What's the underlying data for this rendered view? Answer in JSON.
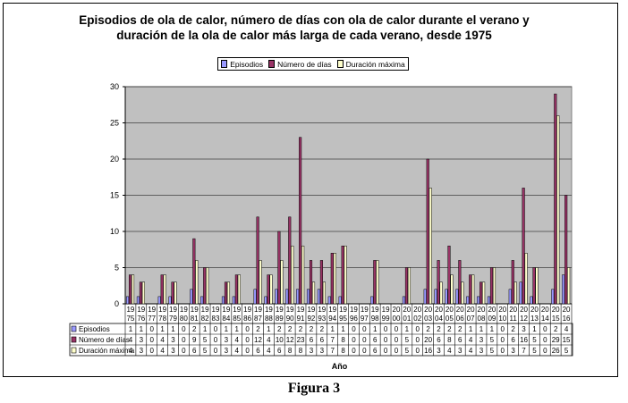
{
  "caption": "Figura 3",
  "chart_data": {
    "type": "bar",
    "title_lines": [
      "Episodios de ola de calor, número de días con ola de calor durante el verano y",
      "duración de la ola de calor más larga de cada verano, desde 1975"
    ],
    "xlabel": "Año",
    "ylabel": "",
    "ylim": [
      0,
      30
    ],
    "yticks": [
      0,
      5,
      10,
      15,
      20,
      25,
      30
    ],
    "grid": true,
    "legend_position": "top-center",
    "categories": [
      "1975",
      "1976",
      "1977",
      "1978",
      "1979",
      "1980",
      "1981",
      "1982",
      "1983",
      "1984",
      "1985",
      "1986",
      "1987",
      "1988",
      "1989",
      "1990",
      "1991",
      "1992",
      "1993",
      "1994",
      "1995",
      "1996",
      "1997",
      "1998",
      "1999",
      "2000",
      "2001",
      "2002",
      "2003",
      "2004",
      "2005",
      "2006",
      "2007",
      "2008",
      "2009",
      "2010",
      "2011",
      "2012",
      "2013",
      "2014",
      "2015",
      "2016"
    ],
    "series": [
      {
        "name": "Episodios",
        "color": "#9999ff",
        "values": [
          1,
          1,
          0,
          1,
          1,
          0,
          2,
          1,
          0,
          1,
          1,
          0,
          2,
          1,
          2,
          2,
          2,
          2,
          2,
          1,
          1,
          0,
          0,
          1,
          0,
          0,
          1,
          0,
          2,
          2,
          2,
          2,
          1,
          1,
          1,
          0,
          2,
          3,
          1,
          0,
          2,
          4
        ]
      },
      {
        "name": "Número de días",
        "color": "#993366",
        "values": [
          4,
          3,
          0,
          4,
          3,
          0,
          9,
          5,
          0,
          3,
          4,
          0,
          12,
          4,
          10,
          12,
          23,
          6,
          6,
          7,
          8,
          0,
          0,
          6,
          0,
          0,
          5,
          0,
          20,
          6,
          8,
          6,
          4,
          3,
          5,
          0,
          6,
          16,
          5,
          0,
          29,
          15
        ]
      },
      {
        "name": "Duración máxima",
        "color": "#ffffcc",
        "values": [
          4,
          3,
          0,
          4,
          3,
          0,
          6,
          5,
          0,
          3,
          4,
          0,
          6,
          4,
          6,
          8,
          8,
          3,
          3,
          7,
          8,
          0,
          0,
          6,
          0,
          0,
          5,
          0,
          16,
          3,
          4,
          3,
          4,
          3,
          5,
          0,
          3,
          7,
          5,
          0,
          26,
          5
        ]
      }
    ]
  }
}
